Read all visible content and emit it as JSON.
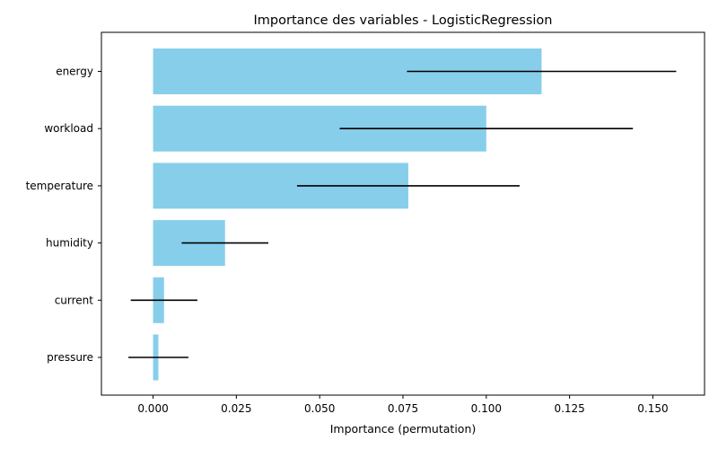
{
  "chart_data": {
    "type": "bar",
    "orientation": "horizontal",
    "title": "Importance des variables - LogisticRegression",
    "xlabel": "Importance (permutation)",
    "ylabel": "",
    "categories": [
      "energy",
      "workload",
      "temperature",
      "humidity",
      "current",
      "pressure"
    ],
    "values": [
      0.1166,
      0.1,
      0.0766,
      0.0216,
      0.0033,
      0.0016
    ],
    "errors": [
      0.0404,
      0.044,
      0.0334,
      0.013,
      0.01,
      0.009
    ],
    "xlim": [
      -0.0155,
      0.1655
    ],
    "xticks": [
      0.0,
      0.025,
      0.05,
      0.075,
      0.1,
      0.125,
      0.15
    ],
    "xtick_labels": [
      "0.000",
      "0.025",
      "0.050",
      "0.075",
      "0.100",
      "0.125",
      "0.150"
    ],
    "bar_color": "#87ceeb",
    "error_color": "#000000",
    "grid": false,
    "legend": "none"
  }
}
